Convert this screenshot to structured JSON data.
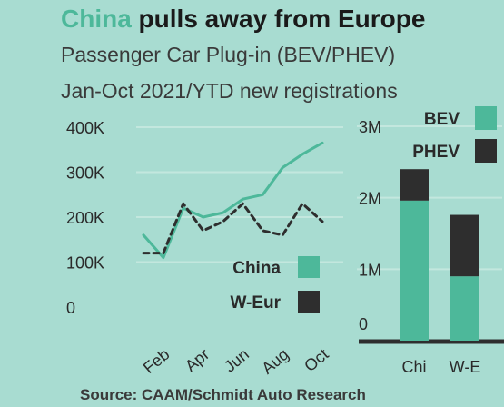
{
  "title": {
    "highlight": "China",
    "rest": " pulls away from Europe"
  },
  "subtitle_line1": "Passenger Car Plug-in (BEV/PHEV)",
  "subtitle_line2": "Jan-Oct 2021/YTD new registrations",
  "source": "Source: CAAM/Schmidt Auto Research",
  "colors": {
    "background": "#a8dcd1",
    "china": "#4db89a",
    "weur": "#2e2e2e",
    "grid": "#c3e7de",
    "axis": "#2e2e2e",
    "title_highlight": "#4db89a"
  },
  "chart_data": [
    {
      "type": "line",
      "x": [
        "Jan",
        "Feb",
        "Mar",
        "Apr",
        "May",
        "Jun",
        "Jul",
        "Aug",
        "Sep",
        "Oct"
      ],
      "x_tick_labels": [
        "Feb",
        "Apr",
        "Jun",
        "Aug",
        "Oct"
      ],
      "y_tick_labels": [
        "400K",
        "300K",
        "200K",
        "100K",
        "0"
      ],
      "ylim": [
        0,
        400000
      ],
      "grid": true,
      "legend_position": "bottom-right",
      "series": [
        {
          "name": "China",
          "style": "solid",
          "values": [
            160000,
            110000,
            220000,
            200000,
            210000,
            240000,
            250000,
            310000,
            340000,
            365000
          ]
        },
        {
          "name": "W-Eur",
          "style": "dashed",
          "values": [
            120000,
            120000,
            230000,
            170000,
            190000,
            230000,
            170000,
            160000,
            230000,
            190000
          ]
        }
      ],
      "legend": [
        {
          "label": "China",
          "color": "#4db89a"
        },
        {
          "label": "W-Eur",
          "color": "#2e2e2e"
        }
      ]
    },
    {
      "type": "bar",
      "stacked": true,
      "categories": [
        "Chi",
        "W-E"
      ],
      "y_tick_labels": [
        "3M",
        "2M",
        "1M",
        "0"
      ],
      "ylim": [
        0,
        3000000
      ],
      "grid": true,
      "legend_position": "top-right",
      "series": [
        {
          "name": "BEV",
          "color": "#4db89a",
          "values": [
            1960000,
            900000
          ]
        },
        {
          "name": "PHEV",
          "color": "#2e2e2e",
          "values": [
            440000,
            860000
          ]
        }
      ]
    }
  ]
}
